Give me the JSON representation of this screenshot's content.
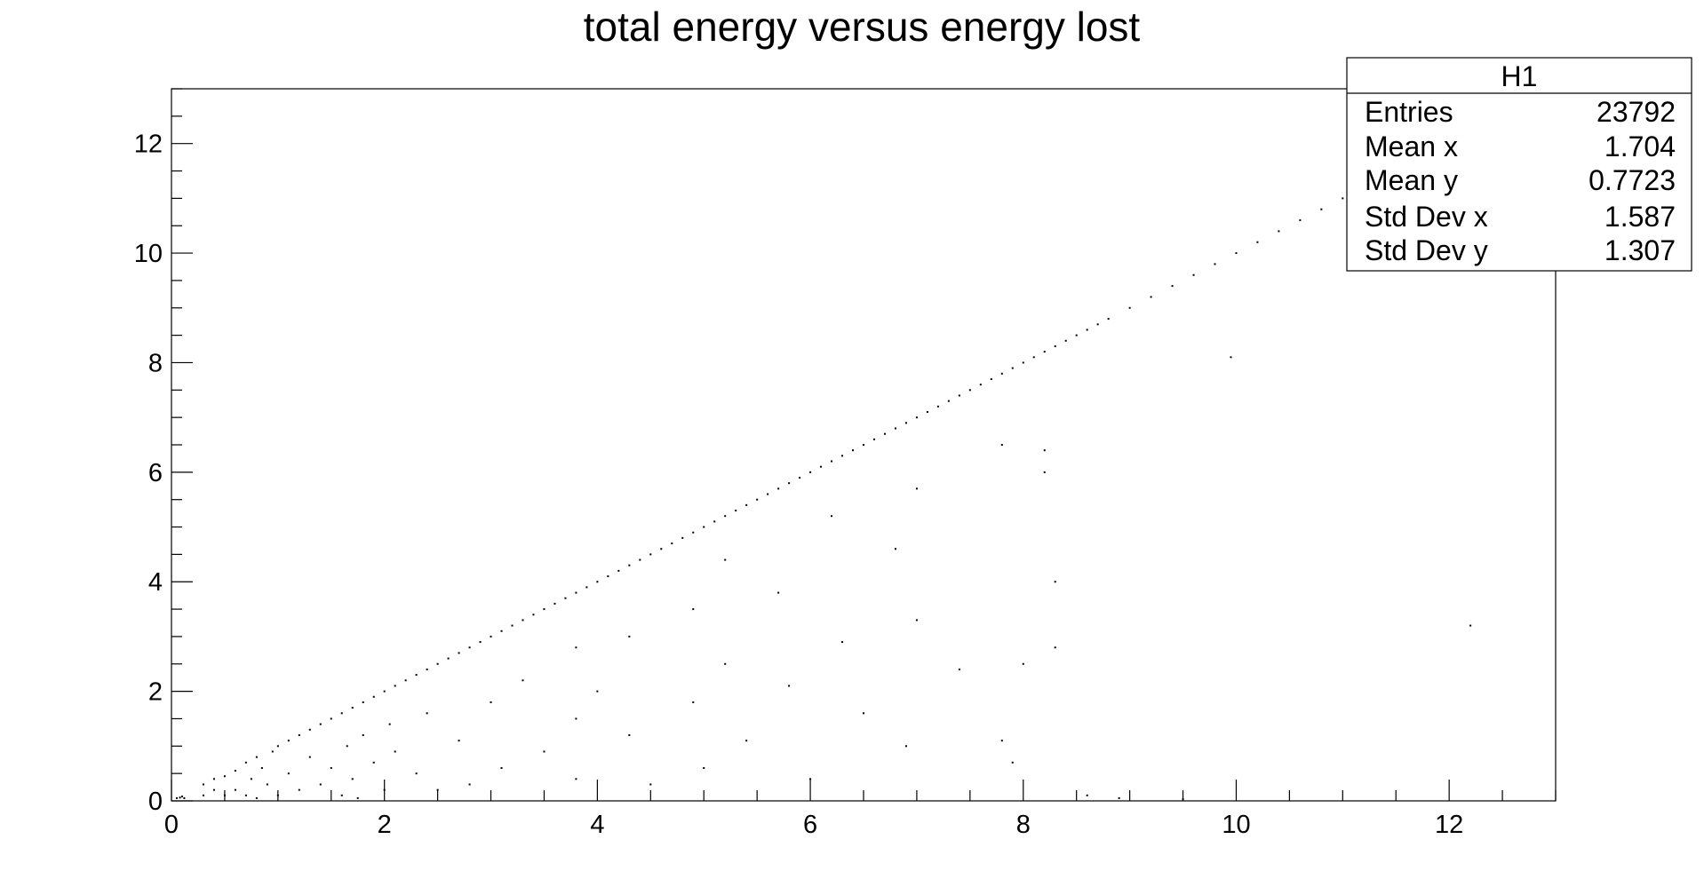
{
  "chart_data": {
    "type": "scatter",
    "title": "total energy versus energy lost",
    "xlabel": "",
    "ylabel": "",
    "xlim": [
      0,
      13
    ],
    "ylim": [
      0,
      13
    ],
    "x_ticks": [
      "0",
      "2",
      "4",
      "6",
      "8",
      "10",
      "12"
    ],
    "y_ticks": [
      "0",
      "2",
      "4",
      "6",
      "8",
      "10",
      "12"
    ],
    "grid": false,
    "legend": "none",
    "stats_box": {
      "name": "H1",
      "rows": [
        {
          "label": "Entries",
          "value": "23792"
        },
        {
          "label": "Mean x",
          "value": "1.704"
        },
        {
          "label": "Mean y",
          "value": "0.7723"
        },
        {
          "label": "Std Dev x",
          "value": "1.587"
        },
        {
          "label": "Std Dev y",
          "value": "1.307"
        }
      ]
    },
    "series": [
      {
        "points": [
          [
            0.05,
            0.05
          ],
          [
            0.08,
            0.06
          ],
          [
            0.1,
            0.08
          ],
          [
            0.12,
            0.05
          ],
          [
            0.3,
            0.1
          ],
          [
            0.3,
            0.3
          ],
          [
            0.4,
            0.2
          ],
          [
            0.4,
            0.4
          ],
          [
            0.5,
            0.1
          ],
          [
            0.5,
            0.45
          ],
          [
            0.6,
            0.2
          ],
          [
            0.6,
            0.55
          ],
          [
            0.7,
            0.7
          ],
          [
            0.7,
            0.1
          ],
          [
            0.75,
            0.4
          ],
          [
            0.8,
            0.8
          ],
          [
            0.8,
            0.05
          ],
          [
            0.85,
            0.6
          ],
          [
            0.9,
            0.3
          ],
          [
            0.95,
            0.9
          ],
          [
            1.0,
            1.0
          ],
          [
            1.0,
            0.1
          ],
          [
            1.1,
            0.5
          ],
          [
            1.1,
            1.1
          ],
          [
            1.2,
            1.2
          ],
          [
            1.2,
            0.2
          ],
          [
            1.3,
            0.8
          ],
          [
            1.3,
            1.3
          ],
          [
            1.4,
            1.4
          ],
          [
            1.4,
            0.3
          ],
          [
            1.5,
            1.5
          ],
          [
            1.5,
            0.6
          ],
          [
            1.6,
            1.6
          ],
          [
            1.6,
            0.1
          ],
          [
            1.65,
            1.0
          ],
          [
            1.7,
            1.7
          ],
          [
            1.7,
            0.4
          ],
          [
            1.75,
            0.05
          ],
          [
            1.8,
            1.8
          ],
          [
            1.8,
            1.2
          ],
          [
            1.9,
            1.9
          ],
          [
            1.9,
            0.7
          ],
          [
            2.0,
            2.0
          ],
          [
            2.0,
            0.2
          ],
          [
            2.05,
            1.4
          ],
          [
            2.1,
            2.1
          ],
          [
            2.1,
            0.9
          ],
          [
            2.2,
            2.2
          ],
          [
            2.3,
            2.3
          ],
          [
            2.3,
            0.5
          ],
          [
            2.4,
            2.4
          ],
          [
            2.4,
            1.6
          ],
          [
            2.5,
            2.5
          ],
          [
            2.5,
            0.2
          ],
          [
            2.6,
            2.6
          ],
          [
            2.7,
            2.7
          ],
          [
            2.7,
            1.1
          ],
          [
            2.8,
            2.8
          ],
          [
            2.8,
            0.3
          ],
          [
            2.9,
            2.9
          ],
          [
            3.0,
            3.0
          ],
          [
            3.0,
            1.8
          ],
          [
            3.1,
            3.1
          ],
          [
            3.1,
            0.6
          ],
          [
            3.2,
            3.2
          ],
          [
            3.3,
            3.3
          ],
          [
            3.3,
            2.2
          ],
          [
            3.4,
            3.4
          ],
          [
            3.5,
            3.5
          ],
          [
            3.5,
            0.9
          ],
          [
            3.6,
            3.6
          ],
          [
            3.7,
            3.7
          ],
          [
            3.8,
            3.8
          ],
          [
            3.8,
            2.8
          ],
          [
            3.8,
            1.5
          ],
          [
            3.8,
            0.4
          ],
          [
            3.9,
            3.9
          ],
          [
            4.0,
            4.0
          ],
          [
            4.0,
            2.0
          ],
          [
            4.1,
            4.1
          ],
          [
            4.2,
            4.2
          ],
          [
            4.3,
            4.3
          ],
          [
            4.3,
            3.0
          ],
          [
            4.3,
            1.2
          ],
          [
            4.4,
            4.4
          ],
          [
            4.5,
            4.5
          ],
          [
            4.5,
            0.3
          ],
          [
            4.6,
            4.6
          ],
          [
            4.7,
            4.7
          ],
          [
            4.8,
            4.8
          ],
          [
            4.9,
            4.9
          ],
          [
            4.9,
            3.5
          ],
          [
            4.9,
            1.8
          ],
          [
            5.0,
            5.0
          ],
          [
            5.0,
            0.6
          ],
          [
            5.1,
            5.1
          ],
          [
            5.2,
            5.2
          ],
          [
            5.2,
            4.4
          ],
          [
            5.2,
            2.5
          ],
          [
            5.3,
            5.3
          ],
          [
            5.4,
            5.4
          ],
          [
            5.4,
            1.1
          ],
          [
            5.5,
            5.5
          ],
          [
            5.6,
            5.6
          ],
          [
            5.7,
            5.7
          ],
          [
            5.7,
            3.8
          ],
          [
            5.8,
            5.8
          ],
          [
            5.8,
            2.1
          ],
          [
            5.9,
            5.9
          ],
          [
            6.0,
            6.0
          ],
          [
            6.0,
            0.4
          ],
          [
            6.1,
            6.1
          ],
          [
            6.2,
            6.2
          ],
          [
            6.2,
            5.2
          ],
          [
            6.3,
            6.3
          ],
          [
            6.3,
            2.9
          ],
          [
            6.4,
            6.4
          ],
          [
            6.5,
            6.5
          ],
          [
            6.5,
            1.6
          ],
          [
            6.6,
            6.6
          ],
          [
            6.7,
            6.7
          ],
          [
            6.8,
            6.8
          ],
          [
            6.8,
            4.6
          ],
          [
            6.9,
            6.9
          ],
          [
            6.9,
            1.0
          ],
          [
            7.0,
            7.0
          ],
          [
            7.0,
            5.7
          ],
          [
            7.0,
            3.3
          ],
          [
            7.1,
            7.1
          ],
          [
            7.2,
            7.2
          ],
          [
            7.3,
            7.3
          ],
          [
            7.4,
            7.4
          ],
          [
            7.4,
            2.4
          ],
          [
            7.5,
            7.5
          ],
          [
            7.6,
            7.6
          ],
          [
            7.7,
            7.7
          ],
          [
            7.8,
            7.8
          ],
          [
            7.8,
            6.5
          ],
          [
            7.9,
            7.9
          ],
          [
            8.0,
            8.0
          ],
          [
            8.0,
            2.5
          ],
          [
            8.1,
            8.1
          ],
          [
            8.2,
            8.2
          ],
          [
            8.2,
            6.4
          ],
          [
            8.2,
            6.0
          ],
          [
            8.3,
            8.3
          ],
          [
            8.3,
            4.0
          ],
          [
            8.3,
            2.8
          ],
          [
            8.4,
            8.4
          ],
          [
            8.5,
            8.5
          ],
          [
            8.6,
            8.6
          ],
          [
            8.7,
            8.7
          ],
          [
            8.8,
            8.8
          ],
          [
            9.0,
            9.0
          ],
          [
            9.2,
            9.2
          ],
          [
            9.4,
            9.4
          ],
          [
            9.6,
            9.6
          ],
          [
            9.8,
            9.8
          ],
          [
            10.0,
            10.0
          ],
          [
            9.95,
            8.1
          ],
          [
            10.2,
            10.2
          ],
          [
            10.4,
            10.4
          ],
          [
            10.6,
            10.6
          ],
          [
            10.8,
            10.8
          ],
          [
            11.0,
            11.0
          ],
          [
            12.2,
            3.2
          ],
          [
            7.9,
            0.7
          ],
          [
            7.8,
            1.1
          ],
          [
            8.6,
            0.1
          ],
          [
            8.9,
            0.05
          ],
          [
            9.5,
            0.03
          ]
        ]
      }
    ]
  }
}
